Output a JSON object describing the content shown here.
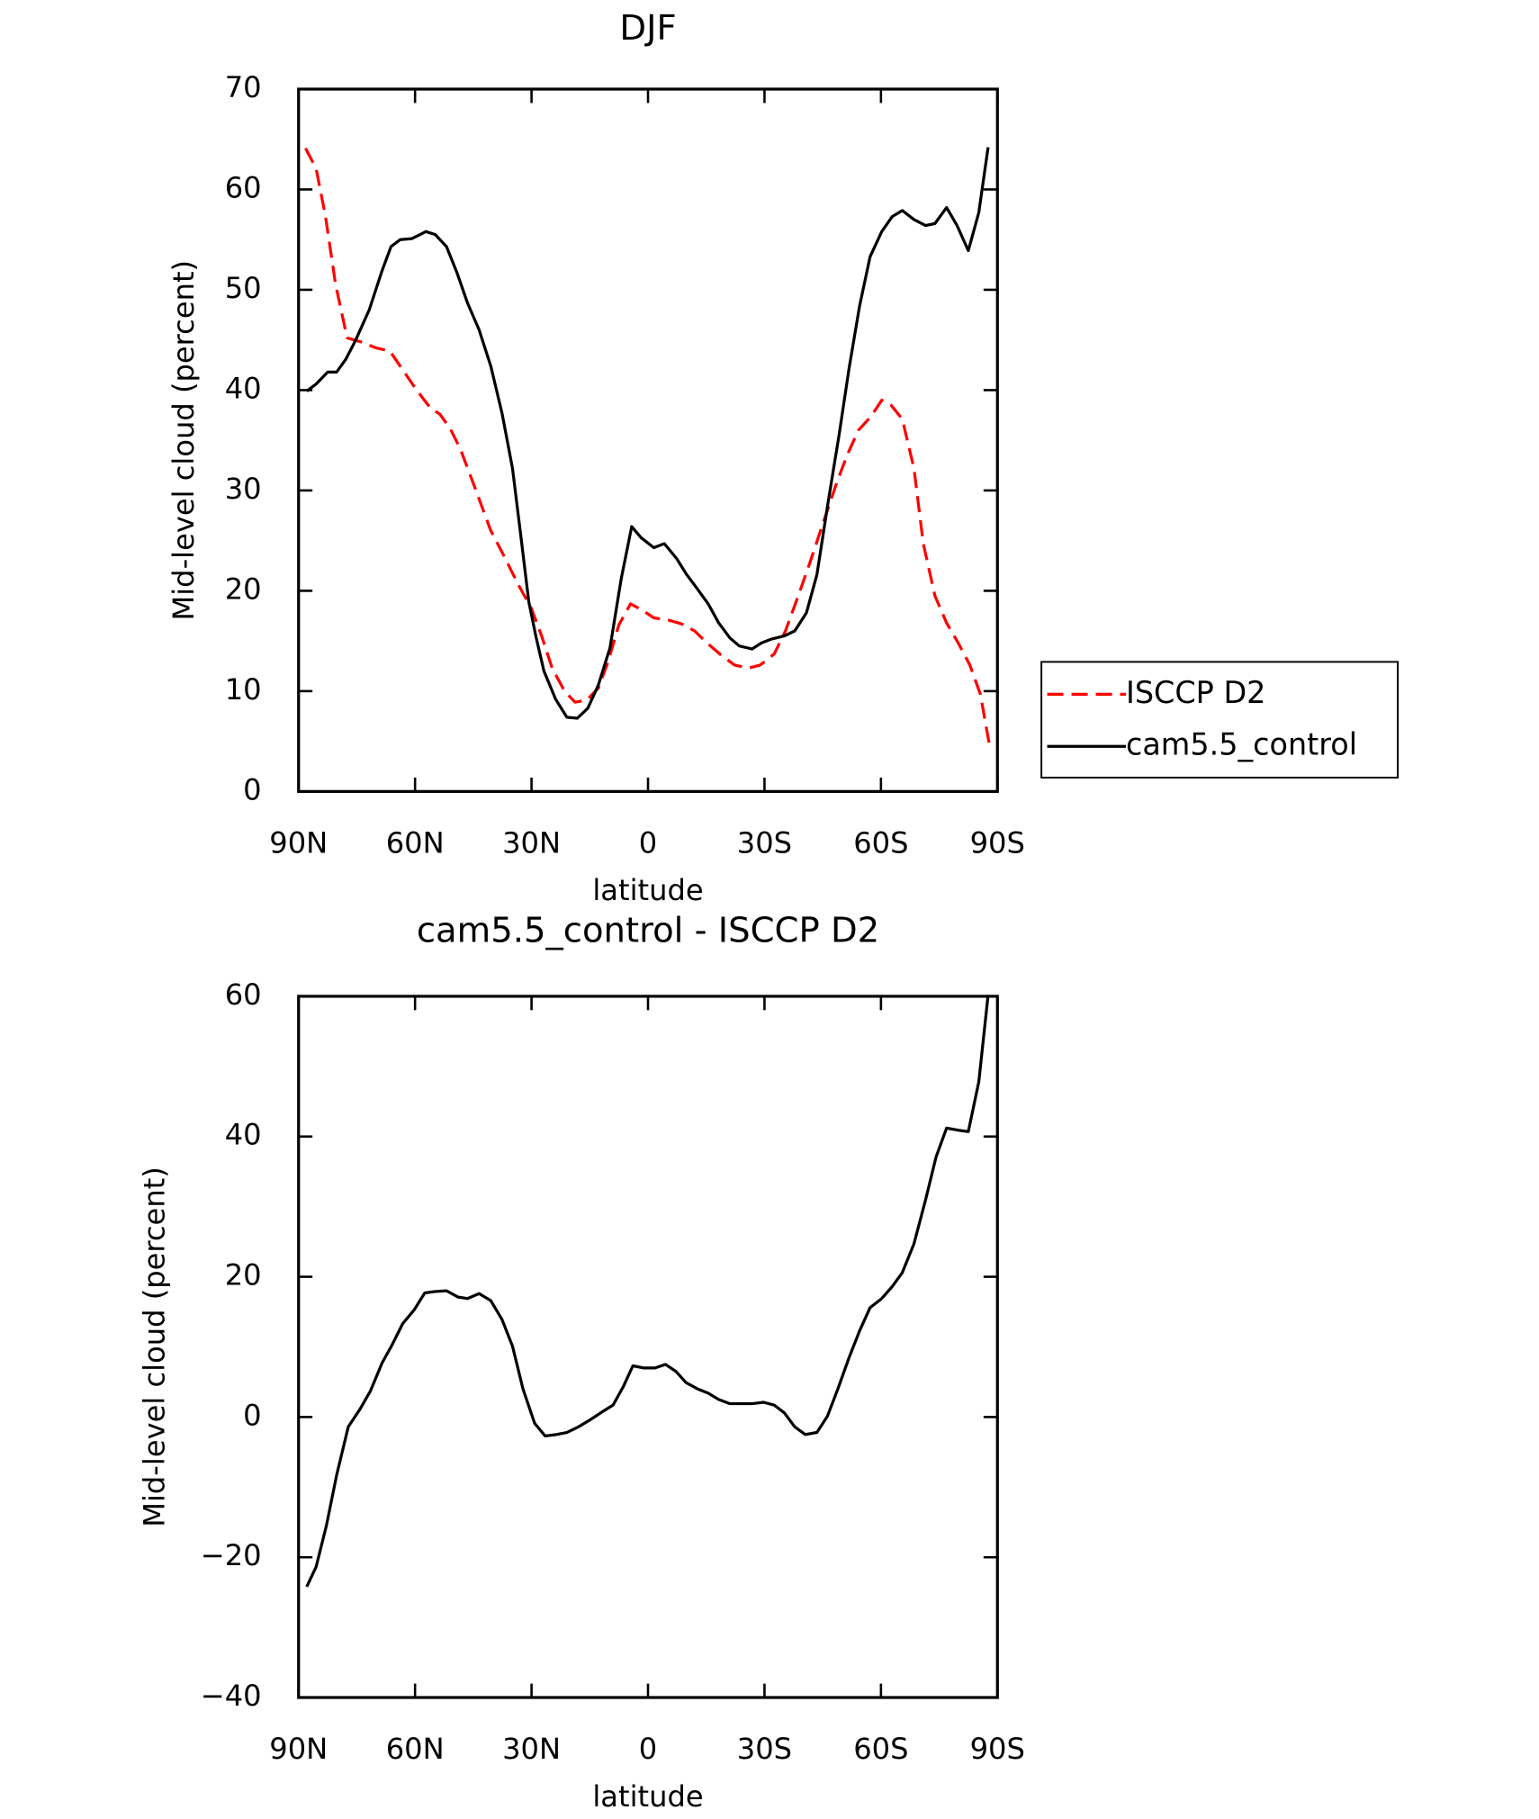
{
  "chart_data": [
    {
      "type": "line",
      "title": "DJF",
      "x_label": "latitude",
      "y_label": "Mid-level cloud (percent)",
      "xlim": [
        90,
        -90
      ],
      "ylim": [
        0,
        70
      ],
      "xticks": [
        {
          "value": 90,
          "label": "90N"
        },
        {
          "value": 60,
          "label": "60N"
        },
        {
          "value": 30,
          "label": "30N"
        },
        0,
        {
          "value": -30,
          "label": "30S"
        },
        {
          "value": -60,
          "label": "60S"
        },
        {
          "value": -90,
          "label": "90S"
        }
      ],
      "yticks": [
        0,
        10,
        20,
        30,
        40,
        50,
        60,
        70
      ],
      "legend": "right",
      "series": [
        {
          "name": "ISCCP D2",
          "color": "#ff0000",
          "dash": true,
          "x": [
            88.2,
            85.5,
            83.1,
            80.5,
            77.5,
            73.9,
            70.0,
            66.5,
            63.5,
            59.6,
            56.0,
            53.6,
            51.0,
            48.3,
            44.7,
            40.5,
            37.0,
            33.4,
            30.1,
            27.4,
            24.7,
            21.5,
            18.8,
            15.8,
            12.8,
            10.4,
            7.5,
            4.5,
            1.2,
            -1.5,
            -5.1,
            -8.7,
            -12.0,
            -15.2,
            -18.8,
            -22.3,
            -25.9,
            -28.9,
            -32.5,
            -35.4,
            -38.7,
            -41.7,
            -45.3,
            -48.9,
            -51.5,
            -54.2,
            -57.5,
            -60.2,
            -62.6,
            -65.5,
            -68.5,
            -70.9,
            -73.9,
            -76.9,
            -79.9,
            -82.9,
            -85.6,
            -88.0
          ],
          "values": [
            64.1,
            62.1,
            57.4,
            50.6,
            45.2,
            44.8,
            44.2,
            43.9,
            42.2,
            40.0,
            38.2,
            37.6,
            36.2,
            34.1,
            30.4,
            26.0,
            23.4,
            20.6,
            18.3,
            15.5,
            12.3,
            10.0,
            8.9,
            9.1,
            10.3,
            12.8,
            16.6,
            18.7,
            18.0,
            17.3,
            17.1,
            16.7,
            16.0,
            14.8,
            13.6,
            12.6,
            12.3,
            12.6,
            13.7,
            16.0,
            19.5,
            22.8,
            27.0,
            31.1,
            33.7,
            36.0,
            37.4,
            39.0,
            38.5,
            37.1,
            32.2,
            24.7,
            19.5,
            16.8,
            14.8,
            12.6,
            9.7,
            4.5
          ]
        },
        {
          "name": "cam5.5_control",
          "color": "#000000",
          "dash": false,
          "x": [
            87.9,
            85.5,
            82.5,
            80.2,
            77.8,
            75.4,
            71.8,
            68.5,
            66.2,
            63.8,
            60.8,
            57.2,
            54.8,
            51.9,
            49.2,
            46.5,
            43.5,
            40.5,
            37.6,
            34.9,
            32.8,
            30.7,
            28.9,
            26.8,
            23.8,
            20.9,
            18.2,
            15.5,
            12.8,
            9.8,
            6.9,
            4.2,
            1.8,
            -1.5,
            -4.2,
            -7.4,
            -9.8,
            -12.5,
            -15.5,
            -18.2,
            -21.1,
            -23.5,
            -26.8,
            -29.2,
            -31.9,
            -35.1,
            -37.8,
            -40.8,
            -43.5,
            -46.5,
            -49.2,
            -51.8,
            -54.5,
            -57.2,
            -60.2,
            -62.9,
            -65.5,
            -68.5,
            -71.5,
            -73.9,
            -76.9,
            -79.6,
            -82.5,
            -85.2,
            -87.6
          ],
          "values": [
            39.9,
            40.6,
            41.8,
            41.8,
            43.1,
            44.9,
            48.0,
            51.9,
            54.3,
            55.0,
            55.1,
            55.8,
            55.5,
            54.3,
            51.7,
            48.7,
            46.0,
            42.4,
            37.7,
            32.2,
            25.6,
            18.9,
            15.5,
            12.0,
            9.2,
            7.4,
            7.3,
            8.3,
            10.6,
            14.3,
            21.2,
            26.4,
            25.3,
            24.3,
            24.7,
            23.2,
            21.7,
            20.3,
            18.7,
            16.8,
            15.3,
            14.5,
            14.2,
            14.8,
            15.2,
            15.5,
            16.0,
            17.8,
            21.6,
            29.1,
            35.5,
            42.2,
            48.4,
            53.3,
            55.8,
            57.3,
            57.9,
            57.0,
            56.4,
            56.6,
            58.2,
            56.4,
            53.9,
            57.7,
            64.2
          ]
        }
      ]
    },
    {
      "type": "line",
      "title": "cam5.5_control - ISCCP D2",
      "x_label": "latitude",
      "y_label": "Mid-level cloud (percent)",
      "xlim": [
        90,
        -90
      ],
      "ylim": [
        -40,
        60
      ],
      "xticks": [
        {
          "value": 90,
          "label": "90N"
        },
        {
          "value": 60,
          "label": "60N"
        },
        {
          "value": 30,
          "label": "30N"
        },
        0,
        {
          "value": -30,
          "label": "30S"
        },
        {
          "value": -60,
          "label": "60S"
        },
        {
          "value": -90,
          "label": "90S"
        }
      ],
      "yticks": [
        {
          "value": -40,
          "label": "−40"
        },
        {
          "value": -20,
          "label": "−20"
        },
        0,
        20,
        40,
        60
      ],
      "color": "#000000",
      "x": [
        87.9,
        85.5,
        82.8,
        80.2,
        77.2,
        74.2,
        71.5,
        68.5,
        65.9,
        63.2,
        60.2,
        57.5,
        54.8,
        51.9,
        48.9,
        46.5,
        43.5,
        40.5,
        37.6,
        34.9,
        32.2,
        29.2,
        26.5,
        23.6,
        20.9,
        17.9,
        14.9,
        11.9,
        9.0,
        6.3,
        3.9,
        1.2,
        -1.8,
        -4.5,
        -7.2,
        -9.8,
        -12.8,
        -15.5,
        -18.2,
        -21.1,
        -24.1,
        -26.8,
        -29.8,
        -32.5,
        -35.1,
        -37.8,
        -40.5,
        -43.5,
        -46.2,
        -48.9,
        -51.8,
        -54.5,
        -57.2,
        -60.2,
        -62.9,
        -65.5,
        -68.5,
        -71.5,
        -74.2,
        -76.9,
        -79.9,
        -82.5,
        -85.2,
        -87.6
      ],
      "values": [
        -24.2,
        -21.4,
        -15.4,
        -8.3,
        -1.4,
        1.1,
        3.7,
        7.7,
        10.3,
        13.3,
        15.3,
        17.7,
        17.9,
        18.0,
        17.1,
        16.9,
        17.6,
        16.6,
        13.9,
        10.1,
        4.0,
        -0.9,
        -2.7,
        -2.5,
        -2.2,
        -1.4,
        -0.4,
        0.7,
        1.7,
        4.4,
        7.3,
        7.0,
        7.0,
        7.5,
        6.5,
        4.9,
        4.0,
        3.4,
        2.5,
        1.9,
        1.9,
        1.9,
        2.1,
        1.7,
        0.6,
        -1.4,
        -2.5,
        -2.2,
        0.1,
        4.0,
        8.5,
        12.3,
        15.6,
        16.9,
        18.6,
        20.6,
        24.7,
        31.0,
        37.1,
        41.2,
        40.9,
        40.7,
        47.8,
        60.2
      ]
    }
  ]
}
